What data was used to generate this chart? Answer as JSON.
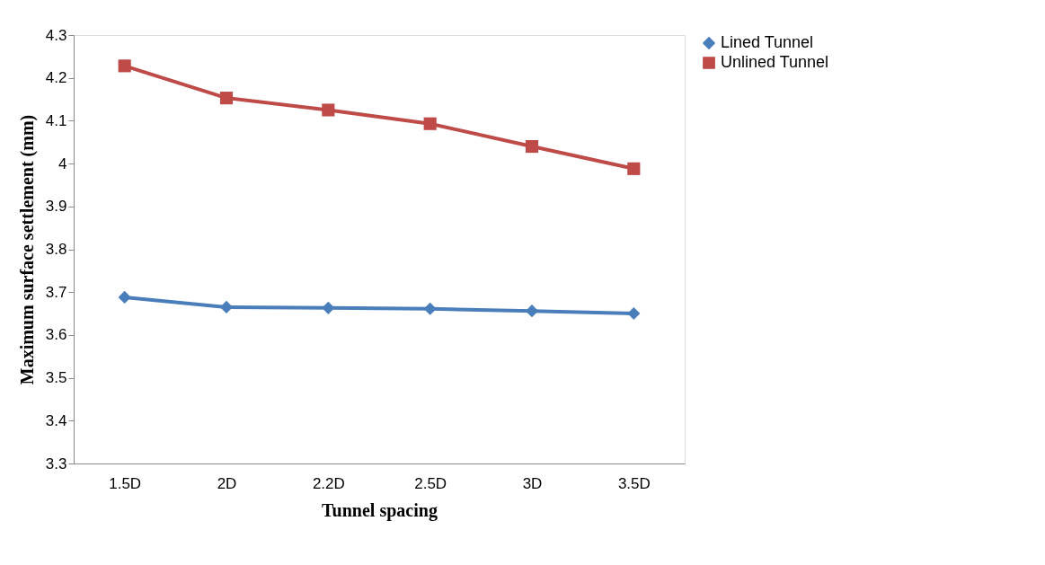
{
  "chart_data": {
    "type": "line",
    "xlabel": "Tunnel spacing",
    "ylabel": "Maximum surface settlement (mm)",
    "categories": [
      "1.5D",
      "2D",
      "2.2D",
      "2.5D",
      "3D",
      "3.5D"
    ],
    "series": [
      {
        "name": "Lined Tunnel",
        "color": "#4a7ebb",
        "marker": "diamond",
        "values": [
          3.688,
          3.665,
          3.663,
          3.661,
          3.656,
          3.65
        ]
      },
      {
        "name": "Unlined Tunnel",
        "color": "#be4b48",
        "marker": "square",
        "values": [
          4.228,
          4.153,
          4.125,
          4.093,
          4.04,
          3.988
        ]
      }
    ],
    "ylim": [
      3.3,
      4.3
    ],
    "yticks": [
      3.3,
      3.4,
      3.5,
      3.6,
      3.7,
      3.8,
      3.9,
      4,
      4.1,
      4.2,
      4.3
    ],
    "grid": false,
    "legend": "right",
    "line_style": "solid"
  }
}
